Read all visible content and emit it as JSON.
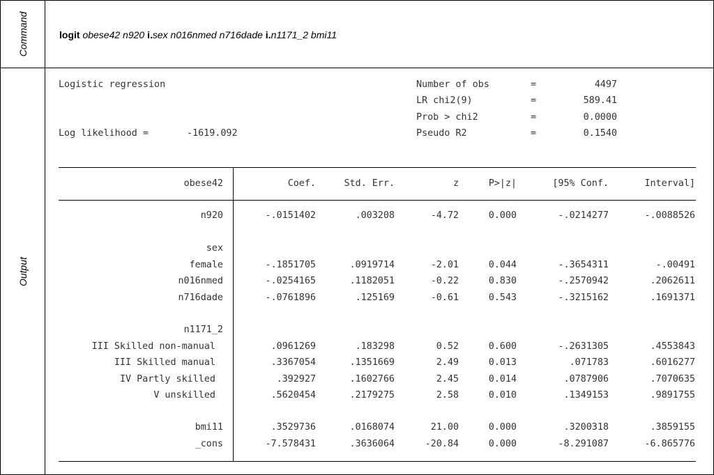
{
  "command_label": "Command",
  "output_label": "Output",
  "command": {
    "keyword": "logit",
    "vars1": "obese42 n920",
    "prefix1": "i.",
    "vars2": "sex n016nmed n716dade",
    "prefix2": "i.",
    "vars3": "n1171_2 bmi11"
  },
  "header": {
    "title": "Logistic regression",
    "loglik_label": "Log likelihood =",
    "loglik_value": "-1619.092",
    "stats": [
      {
        "label": "Number of obs",
        "eq": "=",
        "value": "4497"
      },
      {
        "label": "LR chi2(9)",
        "eq": "=",
        "value": "589.41"
      },
      {
        "label": "Prob > chi2",
        "eq": "=",
        "value": "0.0000"
      },
      {
        "label": "Pseudo R2",
        "eq": "=",
        "value": "0.1540"
      }
    ]
  },
  "table": {
    "depvar": "obese42",
    "columns": [
      "Coef.",
      "Std. Err.",
      "z",
      "P>|z|",
      "[95% Conf.",
      "Interval]"
    ],
    "rows": [
      {
        "label": "n920",
        "coef": "-.0151402",
        "se": ".003208",
        "z": "-4.72",
        "p": "0.000",
        "lo": "-.0214277",
        "hi": "-.0088526"
      },
      {
        "label": "sex",
        "coef": "",
        "se": "",
        "z": "",
        "p": "",
        "lo": "",
        "hi": ""
      },
      {
        "label": "female",
        "coef": "-.1851705",
        "se": ".0919714",
        "z": "-2.01",
        "p": "0.044",
        "lo": "-.3654311",
        "hi": "-.00491"
      },
      {
        "label": "n016nmed",
        "coef": "-.0254165",
        "se": ".1182051",
        "z": "-0.22",
        "p": "0.830",
        "lo": "-.2570942",
        "hi": ".2062611"
      },
      {
        "label": "n716dade",
        "coef": "-.0761896",
        "se": ".125169",
        "z": "-0.61",
        "p": "0.543",
        "lo": "-.3215162",
        "hi": ".1691371"
      },
      {
        "label": "n1171_2",
        "coef": "",
        "se": "",
        "z": "",
        "p": "",
        "lo": "",
        "hi": ""
      },
      {
        "label": "III Skilled non-manual",
        "coef": ".0961269",
        "se": ".183298",
        "z": "0.52",
        "p": "0.600",
        "lo": "-.2631305",
        "hi": ".4553843"
      },
      {
        "label": "III Skilled manual",
        "coef": ".3367054",
        "se": ".1351669",
        "z": "2.49",
        "p": "0.013",
        "lo": ".071783",
        "hi": ".6016277"
      },
      {
        "label": "IV Partly skilled",
        "coef": ".392927",
        "se": ".1602766",
        "z": "2.45",
        "p": "0.014",
        "lo": ".0787906",
        "hi": ".7070635"
      },
      {
        "label": "V unskilled",
        "coef": ".5620454",
        "se": ".2179275",
        "z": "2.58",
        "p": "0.010",
        "lo": ".1349153",
        "hi": ".9891755"
      },
      {
        "label": "bmi11",
        "coef": ".3529736",
        "se": ".0168074",
        "z": "21.00",
        "p": "0.000",
        "lo": ".3200318",
        "hi": ".3859155"
      },
      {
        "label": "_cons",
        "coef": "-7.578431",
        "se": ".3636064",
        "z": "-20.84",
        "p": "0.000",
        "lo": "-8.291087",
        "hi": "-6.865776"
      }
    ]
  }
}
